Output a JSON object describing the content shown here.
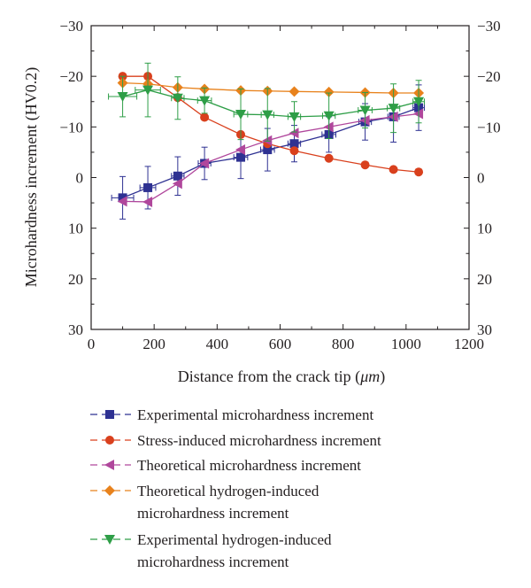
{
  "chart_data": {
    "type": "line",
    "xlabel_prefix": "Distance from the crack tip (",
    "xlabel_unit": "μm",
    "xlabel_suffix": ")",
    "ylabel": "Microhardness increment (HV0.2)",
    "xlim": [
      0,
      1200
    ],
    "ylim": [
      -30,
      30
    ],
    "y_inverted": true,
    "grid": false,
    "xticks": [
      0,
      200,
      400,
      600,
      800,
      1000,
      1200
    ],
    "yticks": [
      -30,
      -20,
      -10,
      0,
      10,
      20,
      30
    ],
    "ytick_labels": [
      "−30",
      "−20",
      "−10",
      "0",
      "10",
      "20",
      "30"
    ],
    "legend_position": "below",
    "series": [
      {
        "name": "Experimental microhardness increment",
        "color": "#2e3192",
        "marker": "square",
        "x": [
          100,
          180,
          275,
          360,
          475,
          560,
          645,
          755,
          870,
          960,
          1040
        ],
        "y": [
          4,
          2,
          -0.3,
          -2.8,
          -4,
          -5.5,
          -6.7,
          -8.5,
          -11,
          -12,
          -13.8
        ],
        "y_err": [
          4.2,
          4.2,
          3.8,
          3.2,
          4.2,
          4.2,
          3.6,
          3.5,
          3.6,
          5,
          4.5
        ],
        "x_err": [
          35,
          25,
          20,
          20,
          22,
          22,
          20,
          22,
          20,
          18,
          18
        ]
      },
      {
        "name": "Stress-induced microhardness increment",
        "color": "#d9401d",
        "marker": "circle",
        "x": [
          100,
          180,
          275,
          360,
          475,
          560,
          645,
          755,
          870,
          960,
          1040
        ],
        "y": [
          -20,
          -20,
          -15.8,
          -11.9,
          -8.5,
          -6.7,
          -5.3,
          -3.8,
          -2.5,
          -1.6,
          -1.1
        ]
      },
      {
        "name": "Theoretical microhardness increment",
        "color": "#b0479c",
        "marker": "triangle-left",
        "x": [
          100,
          180,
          275,
          360,
          475,
          560,
          645,
          755,
          870,
          960,
          1040
        ],
        "y": [
          4.7,
          4.8,
          1.2,
          -2.8,
          -5.5,
          -7.3,
          -8.8,
          -10,
          -11.3,
          -12,
          -12.6
        ]
      },
      {
        "name_lines": [
          "Theoretical hydrogen-induced",
          "microhardness increment"
        ],
        "color": "#e8821c",
        "marker": "diamond",
        "x": [
          100,
          180,
          275,
          360,
          475,
          560,
          645,
          755,
          870,
          960,
          1040
        ],
        "y": [
          -18.7,
          -18.5,
          -17.8,
          -17.5,
          -17.2,
          -17.1,
          -17,
          -16.9,
          -16.8,
          -16.7,
          -16.7
        ]
      },
      {
        "name_lines": [
          "Experimental hydrogen-induced",
          "microhardness increment"
        ],
        "color": "#2e9e47",
        "marker": "triangle-down",
        "x": [
          100,
          180,
          275,
          360,
          475,
          560,
          645,
          755,
          870,
          960,
          1040
        ],
        "y": [
          -16,
          -17.3,
          -15.7,
          -15.2,
          -12.5,
          -12.4,
          -12,
          -12.2,
          -13.3,
          -13.7,
          -15
        ],
        "y_err": [
          4,
          5.3,
          4.2,
          2.5,
          5,
          5.2,
          3,
          4.5,
          3.5,
          4.8,
          4.2
        ],
        "x_err": [
          45,
          40,
          20,
          22,
          22,
          20,
          20,
          20,
          22,
          20,
          18
        ]
      }
    ]
  }
}
